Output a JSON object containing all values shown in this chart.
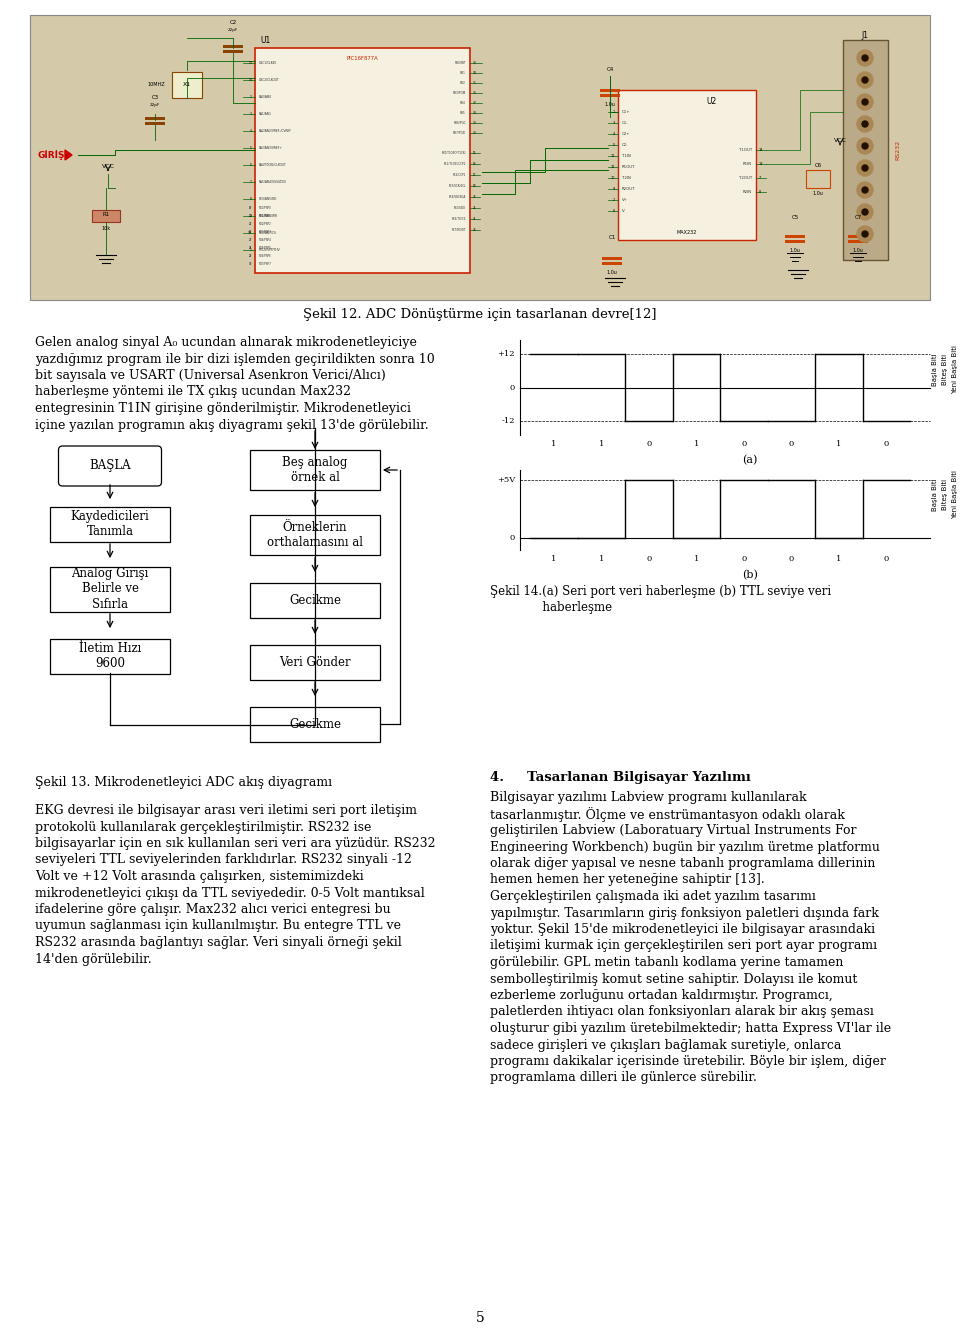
{
  "page_bg": "#ffffff",
  "fig_bg": "#d4c9a8",
  "title_sekil12": "Şekil 12. ADC Dönüştürme için tasarlanan devre[12]",
  "sekil13_label": "Şekil 13. Mikrodenetleyici ADC akış diyagramı",
  "section4_title": "4.     Tasarlanan Bilgisayar Yazılımı",
  "page_num": "5",
  "para1_lines": [
    "Gelen analog sinyal A₀ ucundan alınarak mikrodenetleyiciye",
    "yazdığımız program ile bir dizi işlemden geçirildikten sonra 10",
    "bit sayısala ve USART (Universal Asenkron Verici/Alıcı)",
    "haberleşme yöntemi ile TX çıkış ucundan Max232",
    "entegresinin T1IN girişine gönderilmiştir. Mikrodenetleyici",
    "içine yazılan programın akış diyagramı şekil 13'de görülebilir."
  ],
  "para2_left_lines": [
    "EKG devresi ile bilgisayar arası veri iletimi seri port iletişim",
    "protokolü kullanılarak gerçekleştirilmiştir. RS232 ise",
    "bilgisayarlar için en sık kullanılan seri veri ara yüzüdür. RS232",
    "seviyeleri TTL seviyelerinden farklıdırlar. RS232 sinyali -12",
    "Volt ve +12 Volt arasında çalışırken, sistemimizdeki",
    "mikrodenetleyici çıkışı da TTL seviyededir. 0-5 Volt mantıksal",
    "ifadelerine göre çalışır. Max232 alıcı verici entegresi bu",
    "uyumun sağlanması için kullanılmıştır. Bu entegre TTL ve",
    "RS232 arasında bağlantıyı sağlar. Veri sinyali örneği şekil",
    "14'den görülebilir."
  ],
  "para2_right_lines": [
    "Bilgisayar yazılımı Labview programı kullanılarak",
    "tasarlanmıştır. Ölçme ve enstrümantasyon odaklı olarak",
    "geliştirilen Labview (Laboratuary Virtual Instruments For",
    "Engineering Workbench) bugün bir yazılım üretme platformu",
    "olarak diğer yapısal ve nesne tabanlı programlama dillerinin",
    "hemen hemen her yeteneğine sahiptir [13].",
    "Gerçekleştirilen çalışmada iki adet yazılım tasarımı",
    "yapılmıştır. Tasarımların giriş fonksiyon paletleri dışında fark",
    "yoktur. Şekil 15'de mikrodenetleyici ile bilgisayar arasındaki",
    "iletişimi kurmak için gerçekleştirilen seri port ayar programı",
    "görülebilir. GPL metin tabanlı kodlama yerine tamamen",
    "sembolleştirilmiş komut setine sahiptir. Dolayısı ile komut",
    "ezberleme zorluğunu ortadan kaldırmıştır. Programcı,",
    "paletlerden ihtiyacı olan fonksiyonları alarak bir akış şeması",
    "oluşturur gibi yazılım üretebilmektedir; hatta Express VI'lar ile",
    "sadece girişleri ve çıkışları bağlamak suretiyle, onlarca",
    "programı dakikalar içerisinde üretebilir. Böyle bir işlem, diğer",
    "programlama dilleri ile günlerce sürebilir."
  ],
  "sekil14_caption": "Şekil 14.(a) Seri port veri haberleşme (b) TTL seviye veri\n           haberleşme",
  "wire_color": "#006600",
  "ic_color": "#cc2200",
  "fig_edge": "#888888"
}
